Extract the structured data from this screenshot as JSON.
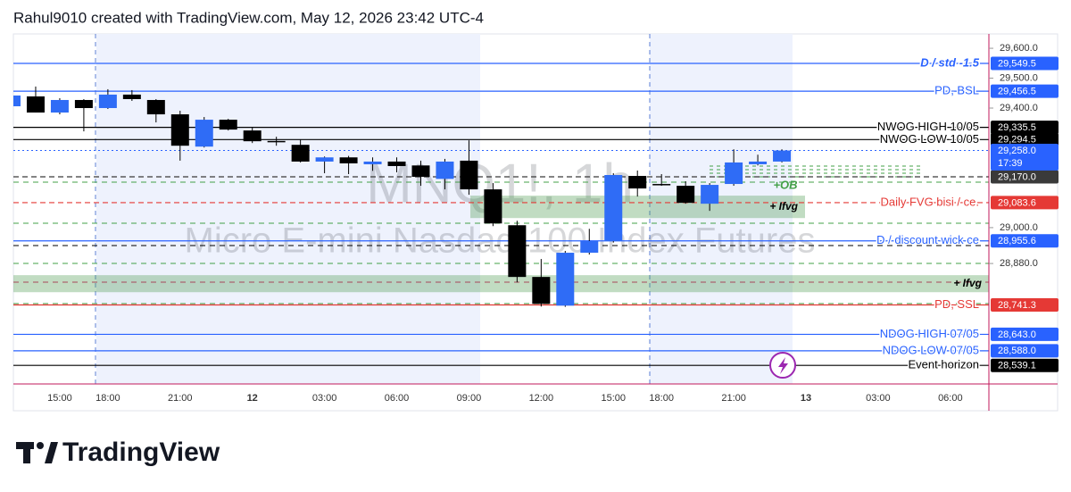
{
  "header": {
    "title": "Rahul9010 created with TradingView.com, May 12, 2026 23:42 UTC-4"
  },
  "footer": {
    "brand": "TradingView"
  },
  "chart_data": {
    "type": "candlestick",
    "watermark": {
      "symbol": "MNQ1!, 1h",
      "description": "Micro E-mini Nasdaq-100 Index Futures"
    },
    "categories": [
      null,
      null,
      "15:00",
      null,
      "18:00",
      null,
      null,
      "21:00",
      null,
      null,
      "12",
      null,
      null,
      "03:00",
      null,
      null,
      "06:00",
      null,
      null,
      "09:00",
      null,
      null,
      "12:00",
      null,
      null,
      "15:00",
      null,
      "18:00",
      null,
      null,
      "21:00",
      null,
      null,
      "13",
      null,
      null,
      "03:00",
      null,
      null,
      "06:00",
      null
    ],
    "open": [
      29406,
      29439,
      29385,
      29427,
      29400,
      29445,
      29427,
      29379,
      29271,
      29361,
      29325,
      29290,
      29277,
      29221,
      29235,
      29212,
      29221,
      29208,
      29163,
      29224,
      29128,
      29008,
      28835,
      28739,
      28916,
      28955,
      29173,
      29146,
      29140,
      29080,
      29146,
      29212,
      29221,
      null,
      null,
      null,
      null,
      null,
      null,
      null,
      null
    ],
    "high": [
      29445,
      29472,
      29433,
      29430,
      29463,
      29460,
      29430,
      29391,
      29370,
      29364,
      29334,
      29304,
      29295,
      29238,
      29240,
      29235,
      29235,
      29224,
      29230,
      29292,
      29149,
      29023,
      28895,
      28922,
      28996,
      29182,
      29191,
      29179,
      29155,
      29149,
      29262,
      29244,
      29262,
      null,
      null,
      null,
      null,
      null,
      null,
      null,
      null
    ],
    "low": [
      29400,
      29385,
      29379,
      29322,
      29397,
      29424,
      29352,
      29224,
      29268,
      29325,
      29283,
      29274,
      29218,
      29182,
      29179,
      29190,
      29185,
      29140,
      29128,
      29110,
      29005,
      28817,
      28736,
      28735,
      28910,
      28950,
      29104,
      29140,
      29080,
      29056,
      29140,
      29208,
      29218,
      null,
      null,
      null,
      null,
      null,
      null,
      null,
      null
    ],
    "close": [
      29442,
      29385,
      29427,
      29400,
      29445,
      29430,
      29379,
      29274,
      29361,
      29328,
      29289,
      29288,
      29221,
      29235,
      29215,
      29221,
      29206,
      29170,
      29221,
      29128,
      29014,
      28835,
      28745,
      28916,
      28955,
      29176,
      29131,
      29143,
      29083,
      29143,
      29218,
      29221,
      29258,
      null,
      null,
      null,
      null,
      null,
      null,
      null,
      null
    ],
    "up_color": "#2f6cf6",
    "down_color": "#000000",
    "ylim": [
      28477,
      29648
    ],
    "yticks": [
      {
        "value": 29600,
        "label": "29,600.0"
      },
      {
        "value": 29500,
        "label": "29,500.0"
      },
      {
        "value": 29400,
        "label": "29,400.0"
      },
      {
        "value": 29000,
        "label": "29,000.0"
      },
      {
        "value": 28880,
        "label": "28,880.0"
      }
    ],
    "levels": [
      {
        "label": "D / std -1.5",
        "value": 29549.5,
        "value_label": "29,549.5",
        "color": "#2962ff",
        "style": "solid",
        "italic": true
      },
      {
        "label": "PD, BSL",
        "value": 29456.5,
        "value_label": "29,456.5",
        "color": "#2962ff",
        "style": "solid"
      },
      {
        "label": "NWOG HIGH 10/05",
        "value": 29335.5,
        "value_label": "29,335.5",
        "color": "#000000",
        "style": "solid"
      },
      {
        "label": "NWOG LOW 10/05",
        "value": 29294.5,
        "value_label": "29,294.5",
        "color": "#000000",
        "style": "solid"
      },
      {
        "value": 29170,
        "value_label": "29,170.0",
        "color": "#3a3a3a",
        "style": "dashed"
      },
      {
        "label": "Daily FVG bisi  / ce.",
        "value": 29083.6,
        "value_label": "29,083.6",
        "color": "#e53935",
        "style": "dashed"
      },
      {
        "label": "D / discount wick ce",
        "value": 28955.6,
        "value_label": "28,955.6",
        "color": "#2962ff",
        "style": "solid"
      },
      {
        "label": "PD, SSL",
        "value": 28741.3,
        "value_label": "28,741.3",
        "color": "#e53935",
        "style": "solid"
      },
      {
        "label": "NDOG HIGH 07/05",
        "value": 28643,
        "value_label": "28,643.0",
        "color": "#2962ff",
        "style": "solid"
      },
      {
        "label": "NDOG LOW 07/05",
        "value": 28588,
        "value_label": "28,588.0",
        "color": "#2962ff",
        "style": "solid"
      },
      {
        "label": "Event horizon",
        "value": 28539.1,
        "value_label": "28,539.1",
        "color": "#000000",
        "style": "solid"
      }
    ],
    "last_price": {
      "value": 29258,
      "value_label": "29,258.0",
      "countdown": "17:39",
      "color": "#2962ff"
    },
    "zones": [
      {
        "label": "+ Ifvg",
        "top": 29107,
        "bottom": 29032
      },
      {
        "label": "+ Ifvg",
        "top": 28841,
        "bottom": 28784
      }
    ],
    "annotations": [
      "+OB"
    ]
  }
}
